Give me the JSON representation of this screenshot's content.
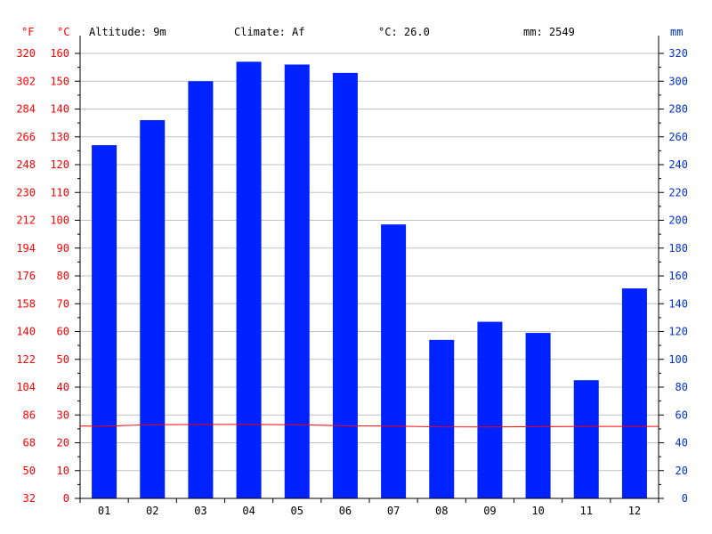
{
  "header": {
    "altitude": "Altitude: 9m",
    "climate": "Climate: Af",
    "temp": "°C: 26.0",
    "precip": "mm: 2549"
  },
  "colors": {
    "bar": "#0022ff",
    "temp_line": "#ff0000",
    "left_axis": "#ff0000",
    "right_axis": "#0033cc",
    "grid": "#c0c0c0"
  },
  "chart_data": {
    "type": "bar",
    "categories": [
      "01",
      "02",
      "03",
      "04",
      "05",
      "06",
      "07",
      "08",
      "09",
      "10",
      "11",
      "12"
    ],
    "series": [
      {
        "type": "bar",
        "axis": "right",
        "values": [
          254,
          272,
          300,
          314,
          312,
          306,
          197,
          114,
          127,
          119,
          85,
          151
        ]
      },
      {
        "type": "line",
        "axis": "left",
        "values": [
          26.0,
          26.5,
          26.6,
          26.6,
          26.5,
          26.1,
          26.0,
          25.7,
          25.7,
          25.8,
          25.9,
          25.9
        ]
      }
    ],
    "left_axis": {
      "unit_f": "°F",
      "unit_c": "°C",
      "ticks_c": [
        "0",
        "10",
        "20",
        "30",
        "40",
        "50",
        "60",
        "70",
        "80",
        "90",
        "100",
        "110",
        "120",
        "130",
        "140",
        "150",
        "160"
      ],
      "ticks_f": [
        "32",
        "50",
        "68",
        "86",
        "104",
        "122",
        "140",
        "158",
        "176",
        "194",
        "212",
        "230",
        "248",
        "266",
        "284",
        "302",
        "320"
      ],
      "ylim": [
        0,
        160
      ]
    },
    "right_axis": {
      "unit": "mm",
      "ticks": [
        "0",
        "20",
        "40",
        "60",
        "80",
        "100",
        "120",
        "140",
        "160",
        "180",
        "200",
        "220",
        "240",
        "260",
        "280",
        "300",
        "320"
      ],
      "ylim": [
        0,
        320
      ]
    },
    "grid": true
  }
}
